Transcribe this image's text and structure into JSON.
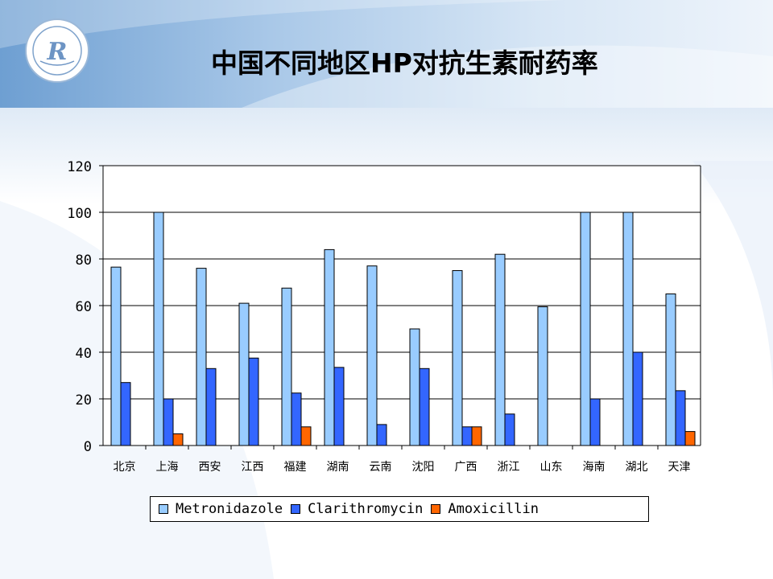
{
  "page": {
    "title": "中国不同地区HP对抗生素耐药率"
  },
  "colors": {
    "metronidazole": "#99ccff",
    "clarithromycin": "#3366ff",
    "amoxicillin": "#ff6600"
  },
  "chart_data": {
    "type": "bar",
    "categories": [
      "北京",
      "上海",
      "西安",
      "江西",
      "福建",
      "湖南",
      "云南",
      "沈阳",
      "广西",
      "浙江",
      "山东",
      "海南",
      "湖北",
      "天津"
    ],
    "series": [
      {
        "name": "Metronidazole",
        "values": [
          76.5,
          100,
          76,
          61,
          67.5,
          84,
          77,
          50,
          75,
          82,
          59.5,
          100,
          100,
          65
        ]
      },
      {
        "name": "Clarithromycin",
        "values": [
          27,
          20,
          33,
          37.5,
          22.5,
          33.5,
          9,
          33,
          8,
          13.5,
          0,
          20,
          40,
          23.5
        ]
      },
      {
        "name": "Amoxicillin",
        "values": [
          0,
          5,
          0,
          0,
          8,
          0,
          0,
          0,
          8,
          0,
          0,
          0,
          0,
          6
        ]
      }
    ],
    "yticks": [
      "0",
      "20",
      "40",
      "60",
      "80",
      "100",
      "120"
    ],
    "ylim": [
      0,
      120
    ],
    "grid": true,
    "legend": "bottom"
  }
}
